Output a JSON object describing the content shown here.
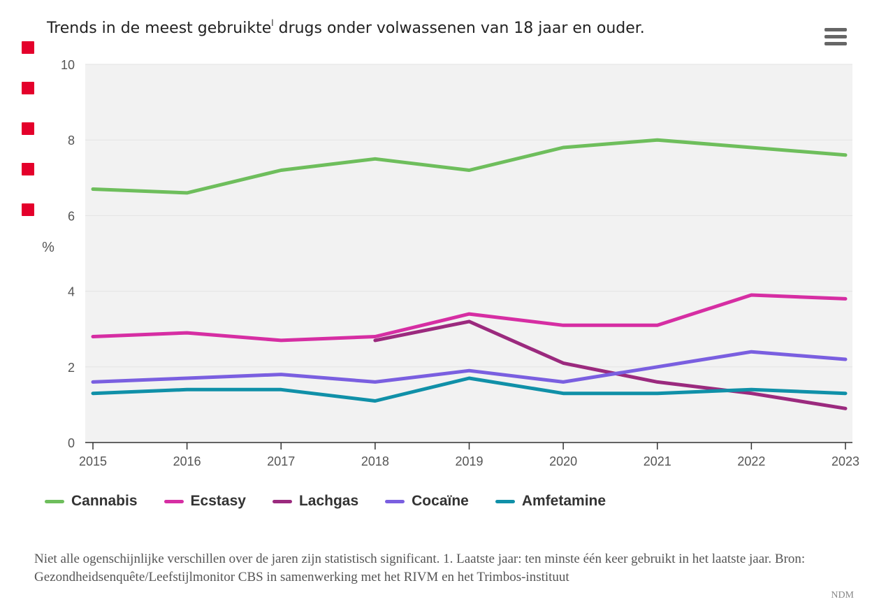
{
  "header": {
    "title_part1": "Trends in de meest gebruikte",
    "title_sup": "l",
    "title_part2": " drugs onder volwassenen van 18 jaar en ouder."
  },
  "menu": {
    "icon": "hamburger-menu-icon"
  },
  "markers": {
    "count": 5,
    "color": "#e4002b"
  },
  "chart_data": {
    "type": "line",
    "x": [
      2015,
      2016,
      2017,
      2018,
      2019,
      2020,
      2021,
      2022,
      2023
    ],
    "ylabel": "%",
    "ylim": [
      0,
      10
    ],
    "yticks": [
      0,
      2,
      4,
      6,
      8,
      10
    ],
    "grid": true,
    "legend_position": "bottom-left",
    "series": [
      {
        "name": "Cannabis",
        "color": "#6ebe5c",
        "values": [
          6.7,
          6.6,
          7.2,
          7.5,
          7.2,
          7.8,
          8.0,
          7.8,
          7.6
        ]
      },
      {
        "name": "Ecstasy",
        "color": "#d62ea3",
        "values": [
          2.8,
          2.9,
          2.7,
          2.8,
          3.4,
          3.1,
          3.1,
          3.9,
          3.8
        ]
      },
      {
        "name": "Lachgas",
        "color": "#9b2a7e",
        "values": [
          null,
          null,
          null,
          2.7,
          3.2,
          2.1,
          1.6,
          1.3,
          0.9
        ]
      },
      {
        "name": "Cocaïne",
        "color": "#7a5fe0",
        "values": [
          1.6,
          1.7,
          1.8,
          1.6,
          1.9,
          1.6,
          2.0,
          2.4,
          2.2
        ]
      },
      {
        "name": "Amfetamine",
        "color": "#1090a8",
        "values": [
          1.3,
          1.4,
          1.4,
          1.1,
          1.7,
          1.3,
          1.3,
          1.4,
          1.3
        ]
      }
    ]
  },
  "footnote": "Niet alle ogenschijnlijke verschillen over de jaren zijn statistisch significant. 1. Laatste jaar: ten minste één keer gebruikt in het laatste jaar. Bron: Gezondheidsenquête/Leefstijlmonitor CBS in samenwerking met het RIVM en het Trimbos-instituut",
  "credit": "NDM"
}
